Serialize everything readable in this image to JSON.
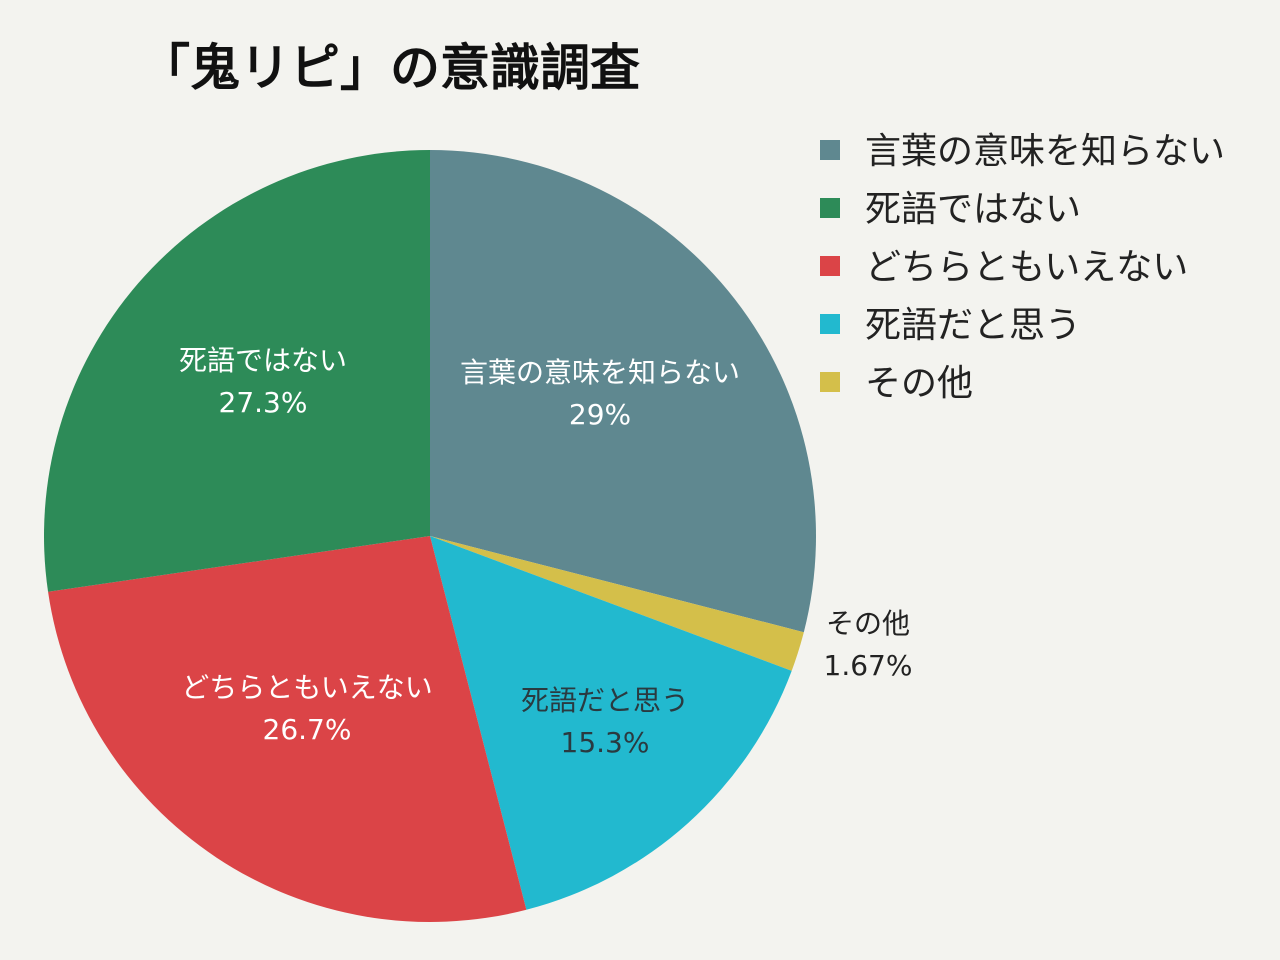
{
  "chart_data": {
    "type": "pie",
    "title": "「鬼リピ」の意識調査",
    "legend_position": "right",
    "slices": [
      {
        "label": "言葉の意味を知らない",
        "value": 29,
        "display": "29%",
        "color": "#5f8890"
      },
      {
        "label": "その他",
        "value": 1.67,
        "display": "1.67%",
        "color": "#d4bf4a"
      },
      {
        "label": "死語だと思う",
        "value": 15.3,
        "display": "15.3%",
        "color": "#22b9cf"
      },
      {
        "label": "どちらともいえない",
        "value": 26.7,
        "display": "26.7%",
        "color": "#db4447"
      },
      {
        "label": "死語ではない",
        "value": 27.3,
        "display": "27.3%",
        "color": "#2d8b58"
      }
    ],
    "legend_order": [
      "言葉の意味を知らない",
      "死語ではない",
      "どちらともいえない",
      "死語だと思う",
      "その他"
    ]
  }
}
